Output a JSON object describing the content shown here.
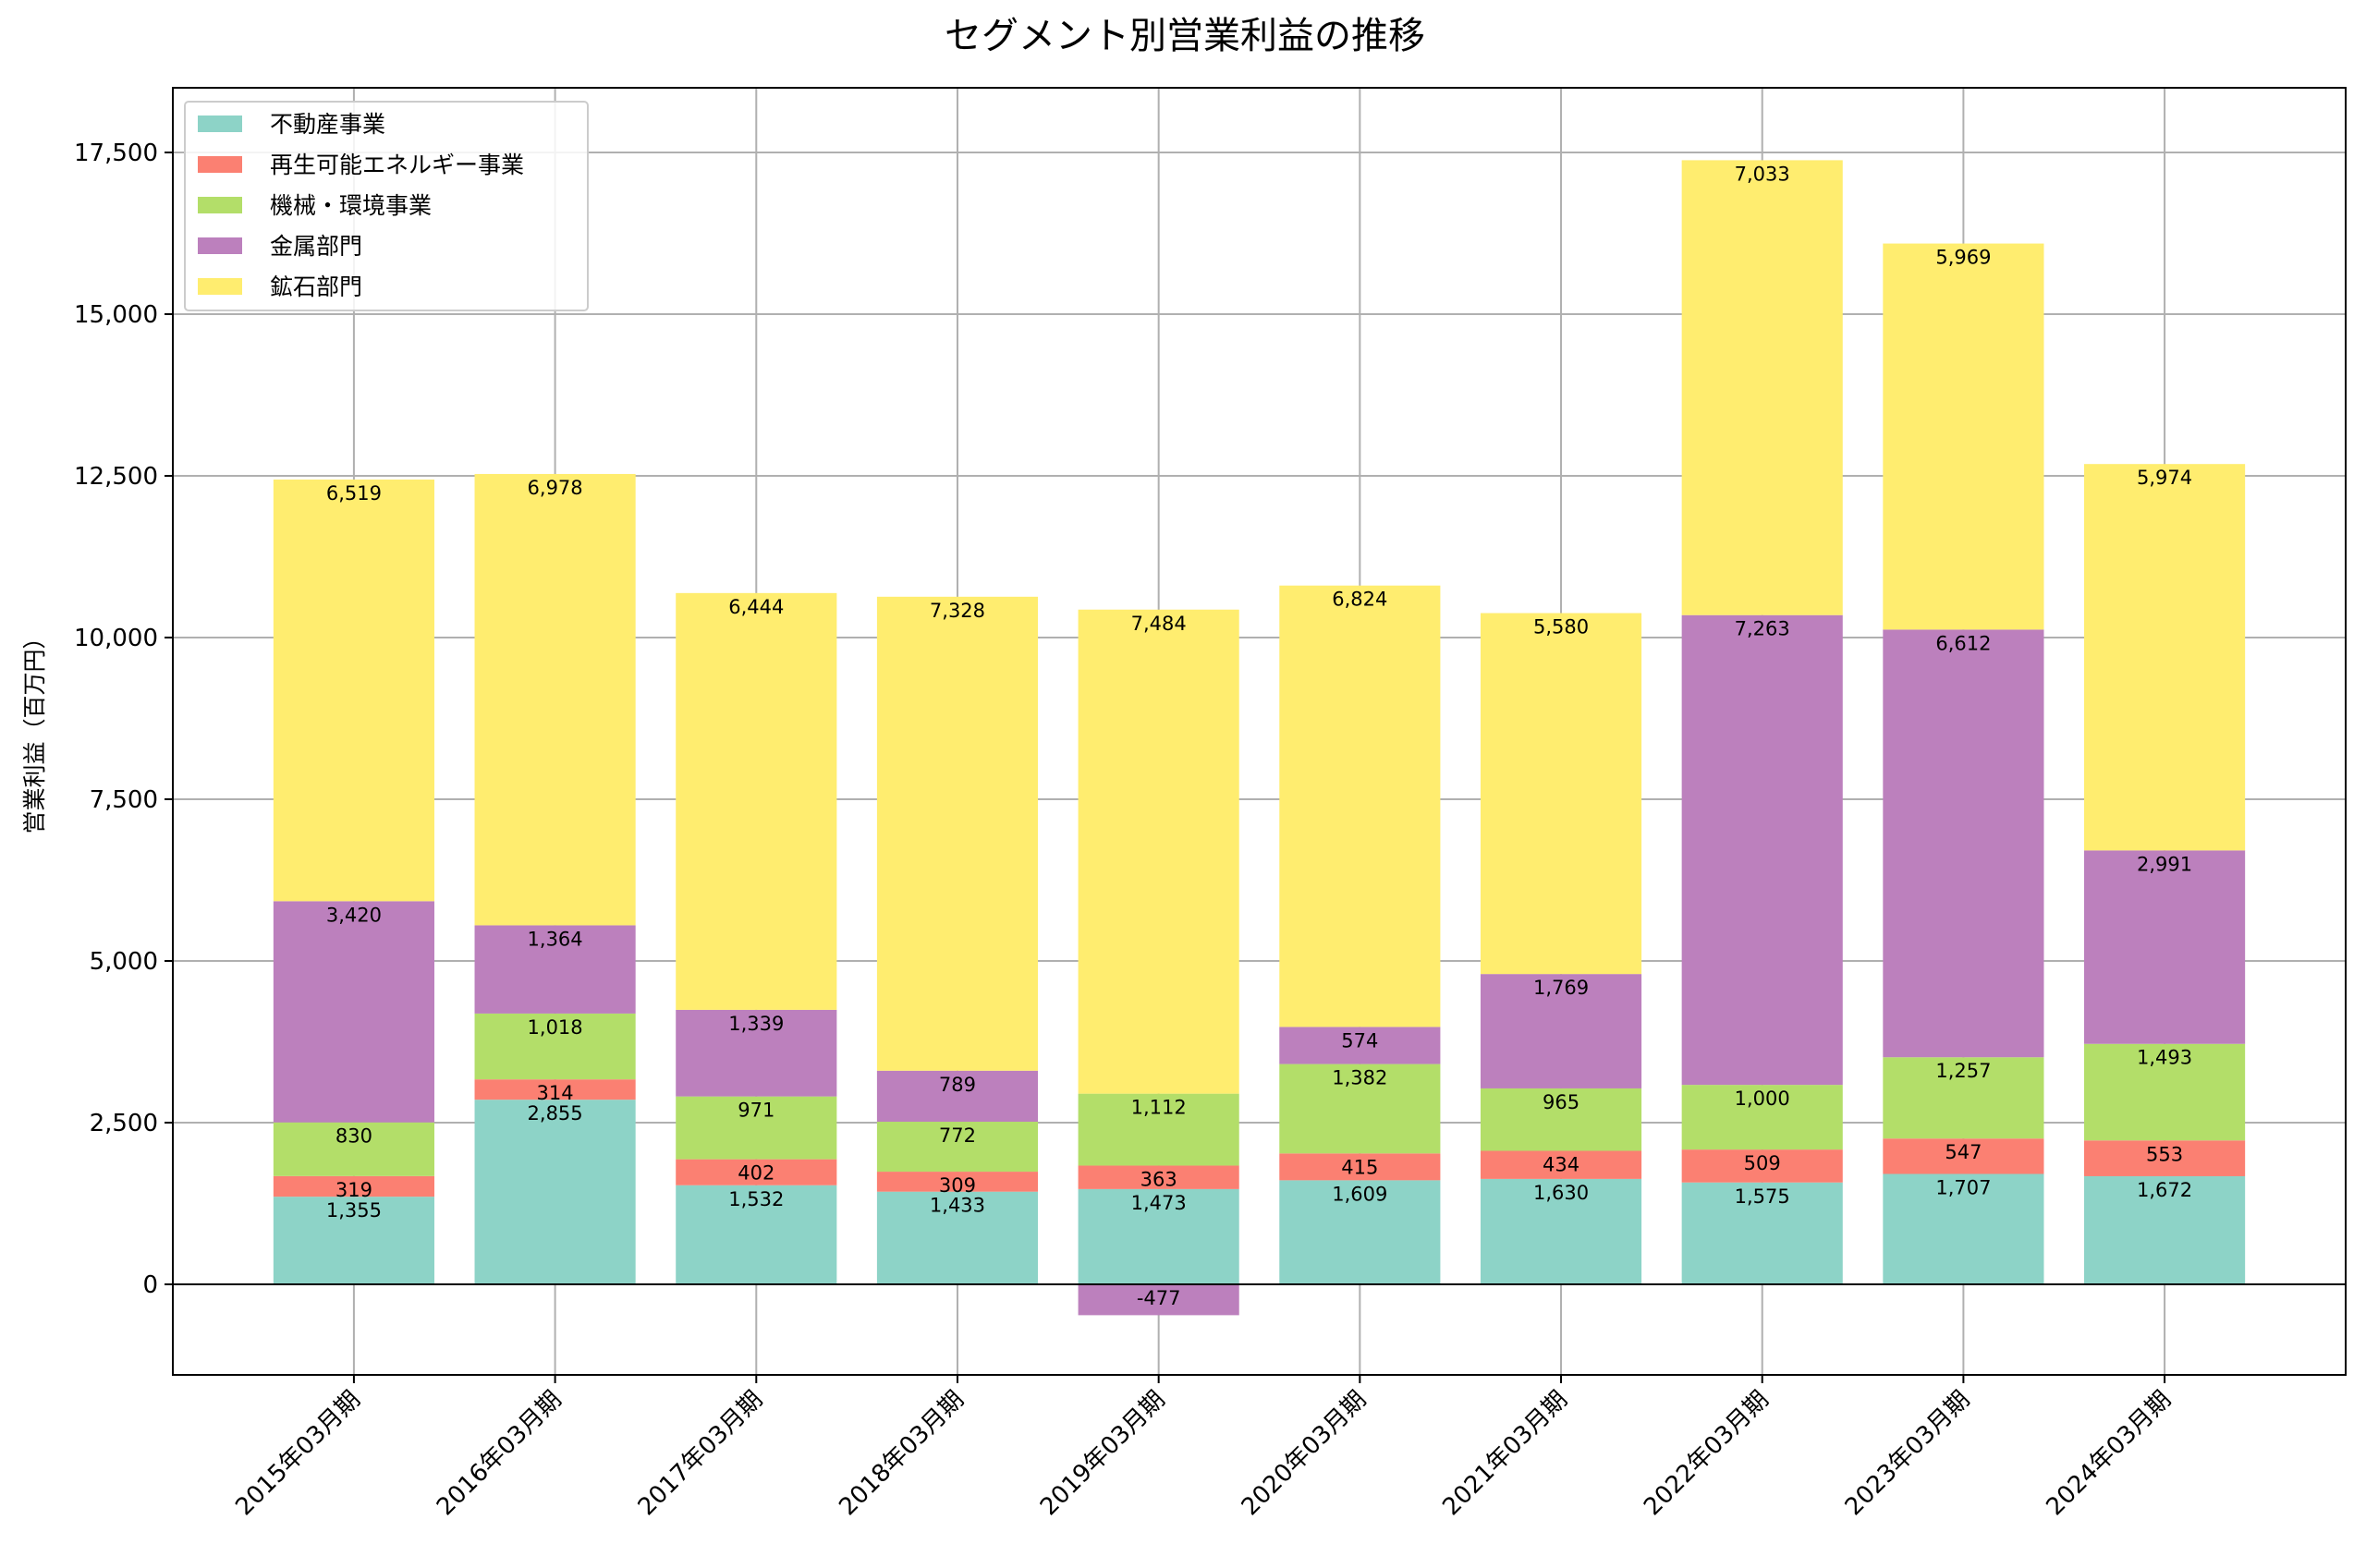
{
  "chart_data": {
    "type": "bar",
    "stacked": true,
    "title": "セグメント別営業利益の推移",
    "xlabel": "",
    "ylabel": "営業利益（百万円）",
    "ylim": [
      -1400,
      18500
    ],
    "yticks": [
      0,
      2500,
      5000,
      7500,
      10000,
      12500,
      15000,
      17500
    ],
    "ytick_labels": [
      "0",
      "2,500",
      "5,000",
      "7,500",
      "10,000",
      "12,500",
      "15,000",
      "17,500"
    ],
    "grid": true,
    "legend_position": "top-left",
    "categories": [
      "2015年03月期",
      "2016年03月期",
      "2017年03月期",
      "2018年03月期",
      "2019年03月期",
      "2020年03月期",
      "2021年03月期",
      "2022年03月期",
      "2023年03月期",
      "2024年03月期"
    ],
    "series": [
      {
        "name": "不動産事業",
        "color": "#8dd3c7",
        "values": [
          1355,
          2855,
          1532,
          1433,
          1473,
          1609,
          1630,
          1575,
          1707,
          1672
        ],
        "labels": [
          "1,355",
          "2,855",
          "1,532",
          "1,433",
          "1,473",
          "1,609",
          "1,630",
          "1,575",
          "1,707",
          "1,672"
        ]
      },
      {
        "name": "再生可能エネルギー事業",
        "color": "#fb8072",
        "values": [
          319,
          314,
          402,
          309,
          363,
          415,
          434,
          509,
          547,
          553
        ],
        "labels": [
          "319",
          "314",
          "402",
          "309",
          "363",
          "415",
          "434",
          "509",
          "547",
          "553"
        ]
      },
      {
        "name": "機械・環境事業",
        "color": "#b3de69",
        "values": [
          830,
          1018,
          971,
          772,
          1112,
          1382,
          965,
          1000,
          1257,
          1493
        ],
        "labels": [
          "830",
          "1,018",
          "971",
          "772",
          "1,112",
          "1,382",
          "965",
          "1,000",
          "1,257",
          "1,493"
        ]
      },
      {
        "name": "金属部門",
        "color": "#bc80bd",
        "values": [
          3420,
          1364,
          1339,
          789,
          -477,
          574,
          1769,
          7263,
          6612,
          2991
        ],
        "labels": [
          "3,420",
          "1,364",
          "1,339",
          "789",
          "-477",
          "574",
          "1,769",
          "7,263",
          "6,612",
          "2,991"
        ]
      },
      {
        "name": "鉱石部門",
        "color": "#ffed6f",
        "values": [
          6519,
          6978,
          6444,
          7328,
          7484,
          6824,
          5580,
          7033,
          5969,
          5974
        ],
        "labels": [
          "6,519",
          "6,978",
          "6,444",
          "7,328",
          "7,484",
          "6,824",
          "5,580",
          "7,033",
          "5,969",
          "5,974"
        ]
      }
    ]
  }
}
